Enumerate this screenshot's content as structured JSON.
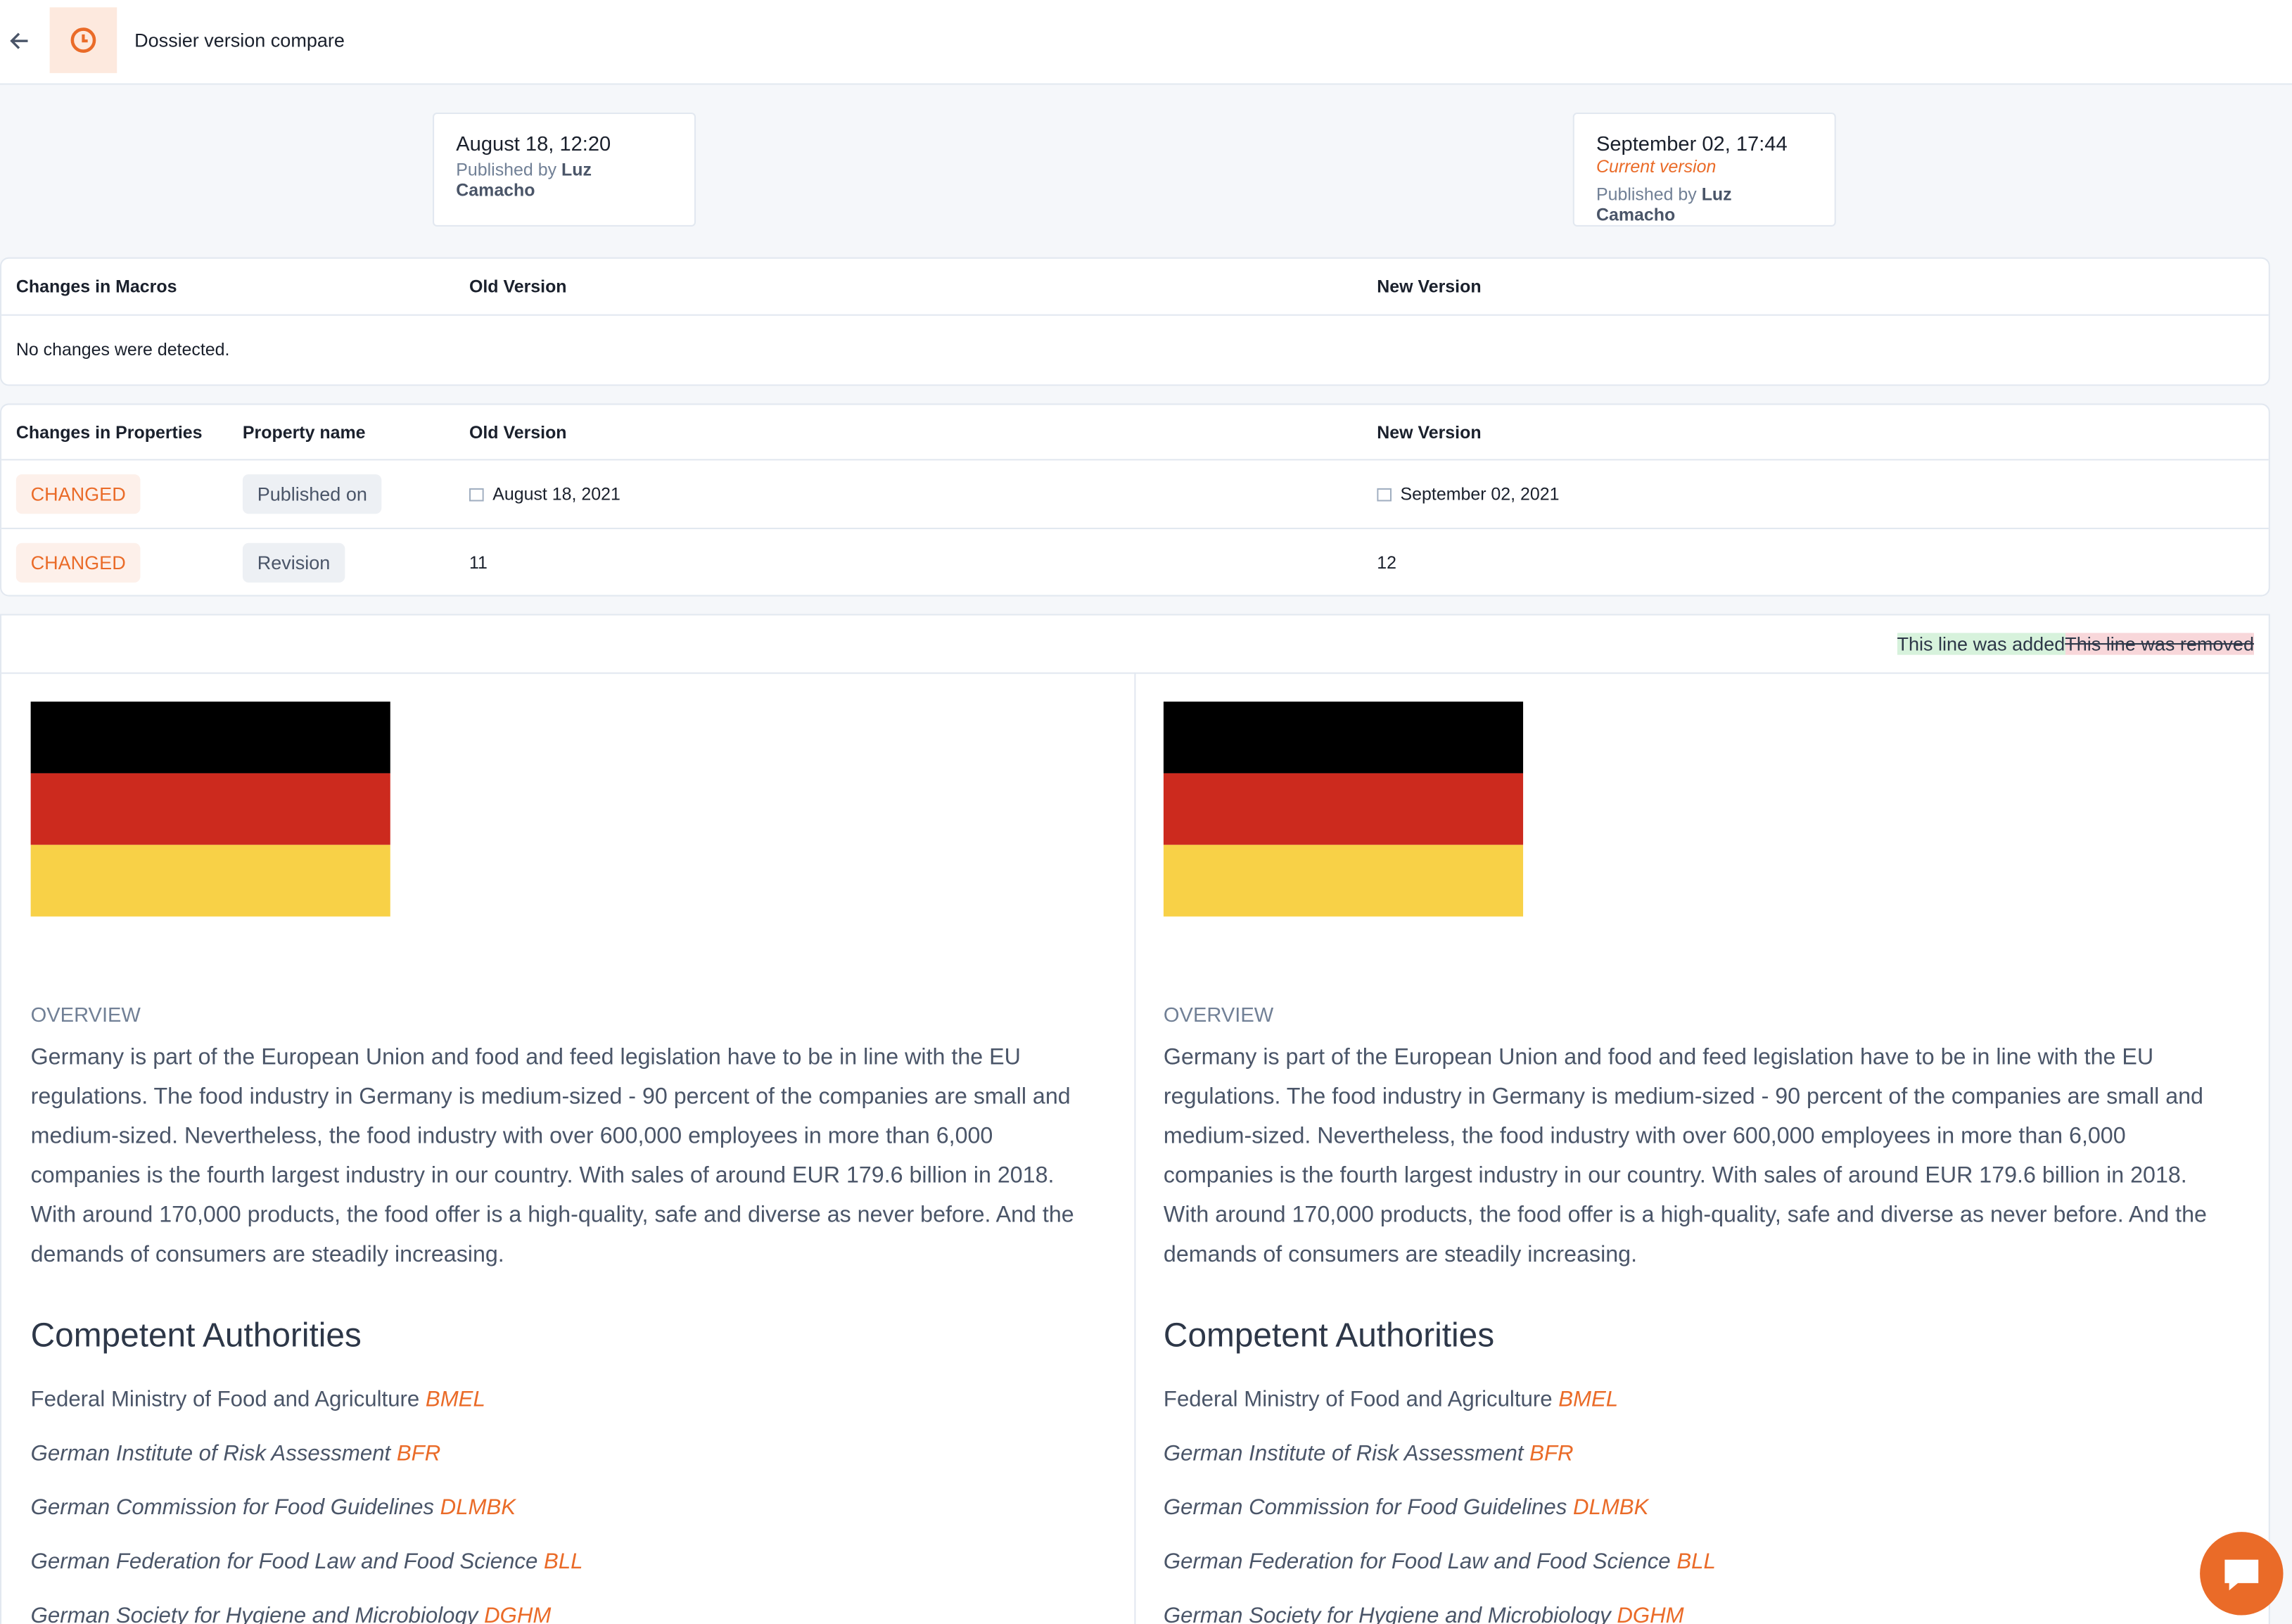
{
  "header": {
    "title": "Dossier version compare"
  },
  "versions": [
    {
      "date": "August 18, 12:20",
      "published_by_label": "Published by",
      "author": "Luz Camacho"
    },
    {
      "date": "September 02, 17:44",
      "status": "Current version",
      "published_by_label": "Published by",
      "author": "Luz Camacho"
    }
  ],
  "macros": {
    "headers": [
      "Changes in Macros",
      "Old Version",
      "New Version"
    ],
    "message": "No changes were detected."
  },
  "properties": {
    "headers": [
      "Changes in Properties",
      "Property name",
      "Old Version",
      "New Version"
    ],
    "rows": [
      [
        "CHANGED",
        "Published on",
        "August 18, 2021",
        "September 02, 2021"
      ],
      [
        "CHANGED",
        "Revision",
        "11",
        "12"
      ]
    ]
  },
  "legend": {
    "added": "This line was added",
    "removed": "This line was removed"
  },
  "documents": [
    {
      "overview_heading": "OVERVIEW",
      "overview": "Germany is part of the European Union and food and feed legislation have to be in line with the EU regulations. The food industry in Germany is medium-sized - 90 percent of the companies are small and medium-sized. Nevertheless, the food industry with over 600,000 employees in more than 6,000 companies is the fourth largest industry in our country. With sales of around EUR 179.6 billion in 2018. With around 170,000 products, the food offer is a high-quality, safe and diverse as never before. And the demands of consumers are steadily increasing.",
      "authorities_heading": "Competent Authorities",
      "authorities": [
        {
          "name": "Federal Ministry of Food and Agriculture",
          "abbr": "BMEL"
        },
        {
          "name": "German Institute of Risk Assessment",
          "abbr": "BFR"
        },
        {
          "name": "German Commission for Food Guidelines",
          "abbr": "DLMBK"
        },
        {
          "name": "German Federation for Food Law and Food Science",
          "abbr": "BLL"
        },
        {
          "name": "German Society for Hygiene and Microbiology",
          "abbr": "DGHM"
        }
      ]
    },
    {
      "overview_heading": "OVERVIEW",
      "overview": "Germany is part of the European Union and food and feed legislation have to be in line with the EU regulations. The food industry in Germany is medium-sized - 90 percent of the companies are small and medium-sized. Nevertheless, the food industry with over 600,000 employees in more than 6,000 companies is the fourth largest industry in our country. With sales of around EUR 179.6 billion in 2018. With around 170,000 products, the food offer is a high-quality, safe and diverse as never before. And the demands of consumers are steadily increasing.",
      "authorities_heading": "Competent Authorities",
      "authorities": [
        {
          "name": "Federal Ministry of Food and Agriculture",
          "abbr": "BMEL"
        },
        {
          "name": "German Institute of Risk Assessment",
          "abbr": "BFR"
        },
        {
          "name": "German Commission for Food Guidelines",
          "abbr": "DLMBK"
        },
        {
          "name": "German Federation for Food Law and Food Science",
          "abbr": "BLL"
        },
        {
          "name": "German Society for Hygiene and Microbiology",
          "abbr": "DGHM"
        }
      ]
    }
  ]
}
